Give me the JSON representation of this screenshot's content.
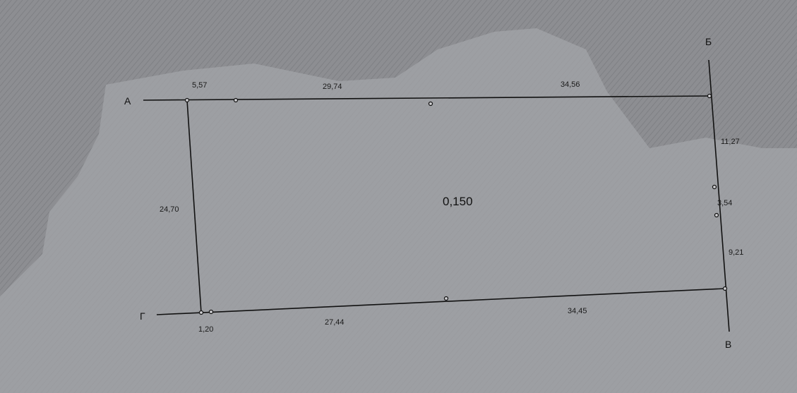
{
  "points": {
    "a": "А",
    "b": "Б",
    "v": "В",
    "g": "Г"
  },
  "segments": {
    "top_1": "5,57",
    "top_2": "29,74",
    "top_3": "34,56",
    "right_1": "11,27",
    "right_2": "3,54",
    "right_3": "9,21",
    "bottom_1": "34,45",
    "bottom_2": "27,44",
    "bottom_3": "1,20",
    "left": "24,70"
  },
  "area": "0,150",
  "colors": {
    "background": "#8d8e92",
    "blob": "#a3a4a8",
    "line": "#111111"
  }
}
